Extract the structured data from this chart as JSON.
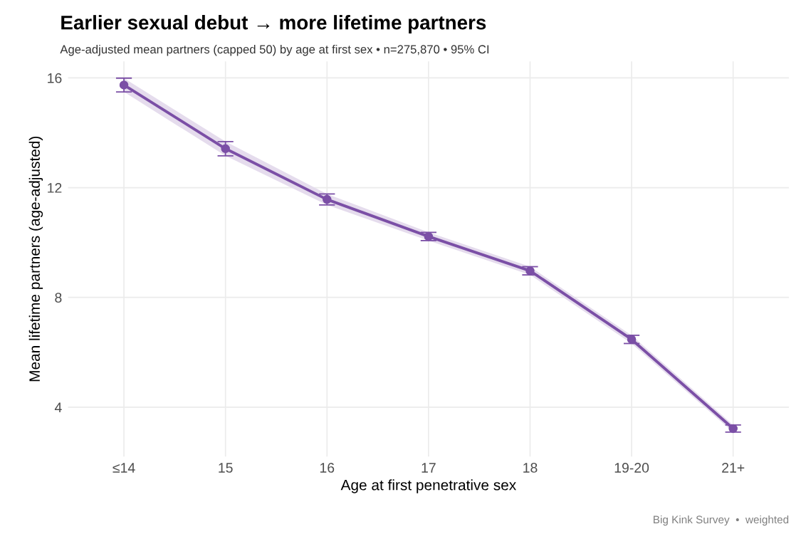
{
  "chart_data": {
    "type": "line",
    "title": "Earlier sexual debut → more lifetime partners",
    "subtitle": "Age-adjusted mean partners (capped 50) by age at first sex • n=275,870 • 95% CI",
    "xlabel": "Age at first penetrative sex",
    "ylabel": "Mean lifetime partners (age-adjusted)",
    "annotations": [
      "Big Kink Survey  •  weighted"
    ],
    "categories": [
      "≤14",
      "15",
      "16",
      "17",
      "18",
      "19-20",
      "21+"
    ],
    "series": [
      {
        "color": "#7b4fa6",
        "values": [
          15.74,
          13.42,
          11.57,
          10.22,
          8.97,
          6.47,
          3.22
        ],
        "errors": [
          0.25,
          0.26,
          0.2,
          0.15,
          0.15,
          0.15,
          0.13
        ],
        "lower": [
          15.49,
          13.16,
          11.37,
          10.07,
          8.82,
          6.32,
          3.09
        ],
        "upper": [
          15.99,
          13.68,
          11.77,
          10.37,
          9.12,
          6.62,
          3.35
        ]
      }
    ],
    "ylim": [
      2.2,
      16.6
    ],
    "yticks": [
      4,
      8,
      12,
      16
    ],
    "grid": true,
    "marker": "circle",
    "line_style": "solid"
  }
}
